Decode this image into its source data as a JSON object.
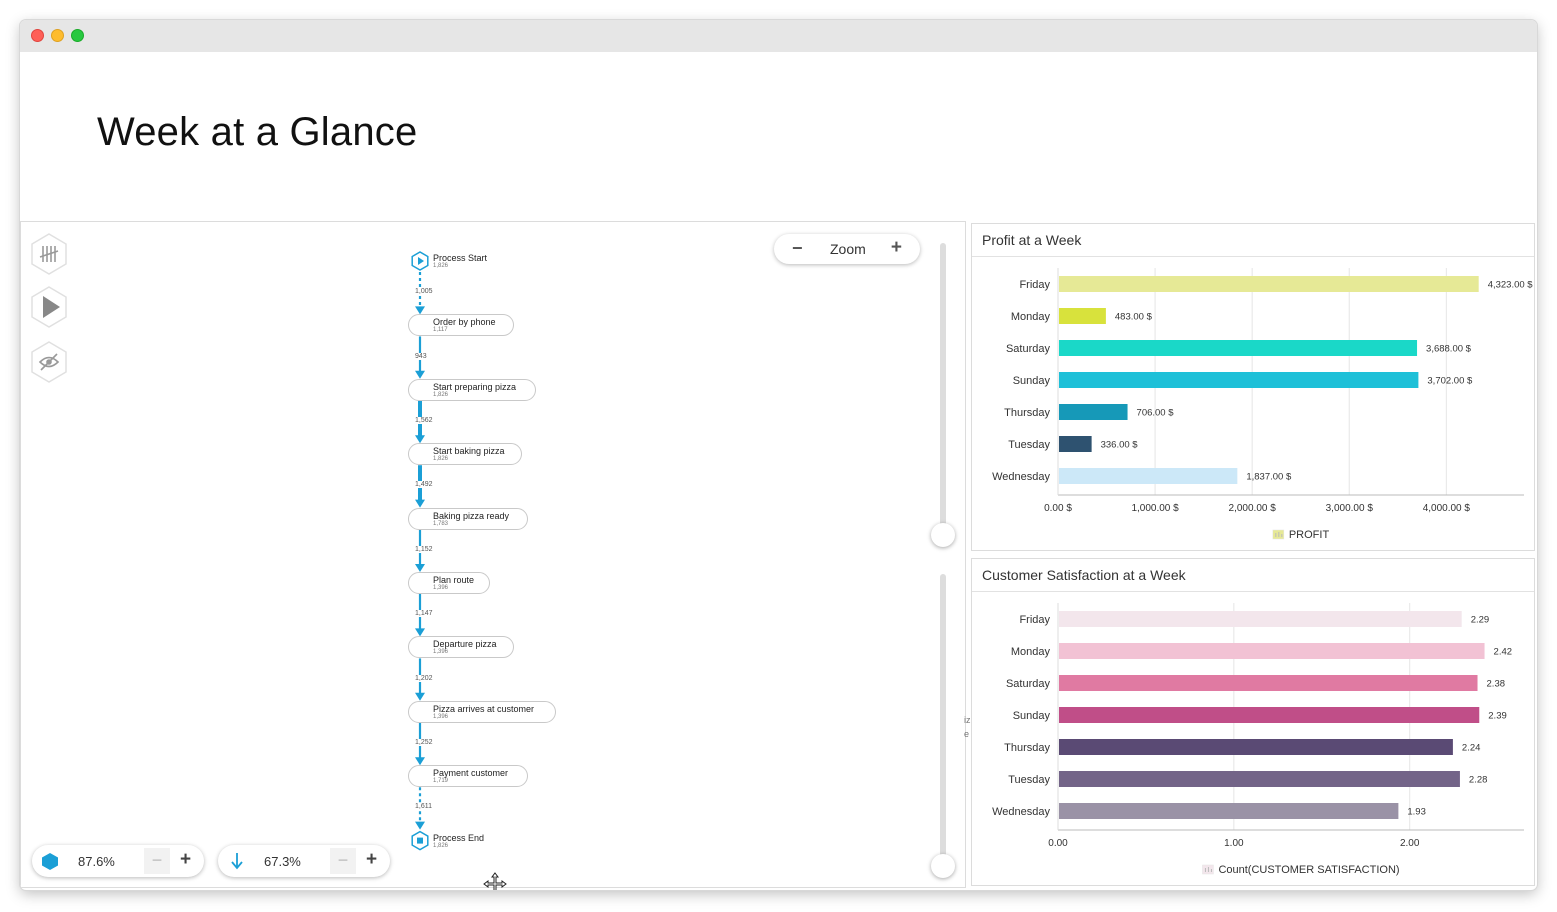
{
  "page_title": "Week at a Glance",
  "zoom": {
    "label": "Zoom",
    "minus": "−",
    "plus": "+"
  },
  "process_map": {
    "nodes": [
      {
        "label": "Process Start",
        "count": "1,826",
        "kind": "start"
      },
      {
        "label": "Order by phone",
        "count": "1,117",
        "kind": "light"
      },
      {
        "label": "Start preparing pizza",
        "count": "1,826",
        "kind": "dark"
      },
      {
        "label": "Start baking pizza",
        "count": "1,826",
        "kind": "dark"
      },
      {
        "label": "Baking pizza ready",
        "count": "1,783",
        "kind": "dark"
      },
      {
        "label": "Plan route",
        "count": "1,396",
        "kind": "mid"
      },
      {
        "label": "Departure pizza",
        "count": "1,396",
        "kind": "mid"
      },
      {
        "label": "Pizza arrives at customer",
        "count": "1,396",
        "kind": "mid"
      },
      {
        "label": "Payment customer",
        "count": "1,719",
        "kind": "dark"
      },
      {
        "label": "Process End",
        "count": "1,826",
        "kind": "end"
      }
    ],
    "edges": [
      {
        "label": "1,005",
        "style": "dotted"
      },
      {
        "label": "943",
        "style": "solid"
      },
      {
        "label": "1,562",
        "style": "thick"
      },
      {
        "label": "1,492",
        "style": "thick"
      },
      {
        "label": "1,152",
        "style": "solid"
      },
      {
        "label": "1,147",
        "style": "solid"
      },
      {
        "label": "1,202",
        "style": "solid"
      },
      {
        "label": "1,252",
        "style": "solid"
      },
      {
        "label": "1,611",
        "style": "dotted"
      }
    ]
  },
  "activities_pct": {
    "value": "87.6%",
    "minus": "−",
    "plus": "+",
    "icon": "hexagon-icon"
  },
  "paths_pct": {
    "value": "67.3%",
    "minus": "−",
    "plus": "+",
    "icon": "arrow-down-icon"
  },
  "side_tools": [
    "tally-icon",
    "play-icon",
    "eye-slash-icon"
  ],
  "stray_text": "iz\ne",
  "profit_panel": {
    "title": "Profit at a Week"
  },
  "satisfaction_panel": {
    "title": "Customer Satisfaction at a Week"
  },
  "chart_data": [
    {
      "type": "bar",
      "orientation": "horizontal",
      "title": "Profit at a Week",
      "categories": [
        "Friday",
        "Monday",
        "Saturday",
        "Sunday",
        "Thursday",
        "Tuesday",
        "Wednesday"
      ],
      "values": [
        4323,
        483,
        3688,
        3702,
        706,
        336,
        1837
      ],
      "value_labels": [
        "4,323.00 $",
        "483.00 $",
        "3,688.00 $",
        "3,702.00 $",
        "706.00 $",
        "336.00 $",
        "1,837.00 $"
      ],
      "colors": [
        "#e6e996",
        "#d8e23c",
        "#1ad8c8",
        "#1ec0d8",
        "#1699b8",
        "#2e5270",
        "#cce8f8"
      ],
      "xlim": [
        0,
        4800
      ],
      "xticks": [
        0,
        1000,
        2000,
        3000,
        4000
      ],
      "xtick_labels": [
        "0.00 $",
        "1,000.00 $",
        "2,000.00 $",
        "3,000.00 $",
        "4,000.00 $"
      ],
      "grid": true,
      "legend": "PROFIT",
      "legend_color": "#e6e996",
      "legend_position": "bottom"
    },
    {
      "type": "bar",
      "orientation": "horizontal",
      "title": "Customer Satisfaction at a Week",
      "categories": [
        "Friday",
        "Monday",
        "Saturday",
        "Sunday",
        "Thursday",
        "Tuesday",
        "Wednesday"
      ],
      "values": [
        2.29,
        2.42,
        2.38,
        2.39,
        2.24,
        2.28,
        1.93
      ],
      "value_labels": [
        "2.29",
        "2.42",
        "2.38",
        "2.39",
        "2.24",
        "2.28",
        "1.93"
      ],
      "colors": [
        "#f3e6ec",
        "#f2c2d4",
        "#e07aa2",
        "#c04e88",
        "#5a4a74",
        "#736488",
        "#9a92a6"
      ],
      "xlim": [
        0,
        2.65
      ],
      "xticks": [
        0,
        1,
        2
      ],
      "xtick_labels": [
        "0.00",
        "1.00",
        "2.00"
      ],
      "grid": true,
      "legend": "Count(CUSTOMER SATISFACTION)",
      "legend_color": "#f3e6ec",
      "legend_position": "bottom"
    }
  ]
}
